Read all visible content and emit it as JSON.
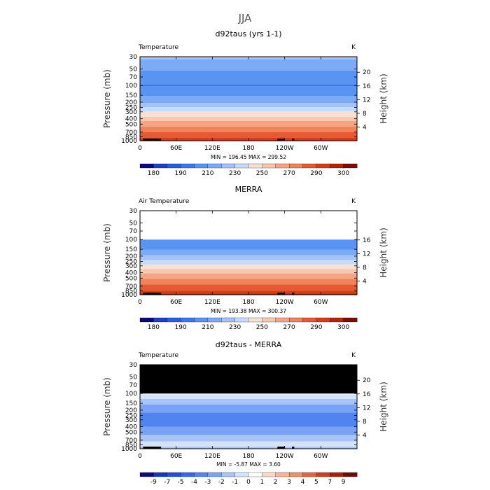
{
  "figure_title": "JJA",
  "colors": {
    "temp_ramp": [
      "#0a0a7a",
      "#1f3fc7",
      "#2a5ee0",
      "#3b78ee",
      "#5a94f2",
      "#7caaf5",
      "#a3c3f7",
      "#c7daf8",
      "#f6e2d4",
      "#f7c7b0",
      "#f5a585",
      "#f0825c",
      "#e65a33",
      "#d63c18",
      "#b62408",
      "#7a0d05"
    ],
    "diff_ramp": [
      "#0a0a7a",
      "#1537b8",
      "#2250d8",
      "#3767e8",
      "#5284f0",
      "#7aa2f4",
      "#a7c4f7",
      "#d4e2fa",
      "#ffffff",
      "#fbd9c6",
      "#f5b596",
      "#ef9068",
      "#e4663e",
      "#cf3f1b",
      "#a8200a",
      "#6d0c05"
    ],
    "mask": "#000000",
    "frame": "#000000"
  },
  "panels": [
    {
      "title": "d92taus (yrs 1-1)",
      "left_label": "Temperature",
      "right_label": "K",
      "ylabel": "Pressure (mb)",
      "ylabel_right": "Height (km)",
      "stats": "MIN = 196.45   MAX = 299.52"
    },
    {
      "title": "MERRA",
      "left_label": "Air Temperature",
      "right_label": "K",
      "ylabel": "Pressure (mb)",
      "ylabel_right": "Height (km)",
      "stats": "MIN = 193.38   MAX = 300.37"
    },
    {
      "title": "d92taus - MERRA",
      "left_label": "Temperature",
      "right_label": "K",
      "ylabel": "Pressure (mb)",
      "ylabel_right": "Height (km)",
      "stats": "MIN =  -5.87   MAX =    3.60"
    }
  ],
  "chart_data": [
    {
      "type": "heatmap",
      "title": "d92taus (yrs 1-1)",
      "variable": "Temperature",
      "units": "K",
      "xlabel": "",
      "ylabel": "Pressure (mb)",
      "ylabel_right": "Height (km)",
      "x_ticks": [
        "0",
        "60E",
        "120E",
        "180",
        "120W",
        "60W"
      ],
      "y_ticks": [
        "30",
        "50",
        "70",
        "100",
        "150",
        "200",
        "250",
        "300",
        "400",
        "500",
        "700",
        "850",
        "1000"
      ],
      "y_ticks_right": [
        "20",
        "16",
        "12",
        "8",
        "4"
      ],
      "y_scale": "log",
      "ylim": [
        1000,
        30
      ],
      "colorbar_labels": [
        "180",
        "190",
        "210",
        "230",
        "250",
        "270",
        "290",
        "300"
      ],
      "min": 196.45,
      "max": 299.52,
      "profile": [
        {
          "p": 1000,
          "v": 296
        },
        {
          "p": 850,
          "v": 288
        },
        {
          "p": 700,
          "v": 281
        },
        {
          "p": 500,
          "v": 266
        },
        {
          "p": 400,
          "v": 255
        },
        {
          "p": 300,
          "v": 241
        },
        {
          "p": 250,
          "v": 230
        },
        {
          "p": 200,
          "v": 219
        },
        {
          "p": 150,
          "v": 208
        },
        {
          "p": 100,
          "v": 199
        },
        {
          "p": 70,
          "v": 205
        },
        {
          "p": 50,
          "v": 212
        },
        {
          "p": 30,
          "v": 222
        }
      ]
    },
    {
      "type": "heatmap",
      "title": "MERRA",
      "variable": "Air Temperature",
      "units": "K",
      "xlabel": "",
      "ylabel": "Pressure (mb)",
      "ylabel_right": "Height (km)",
      "x_ticks": [
        "0",
        "60E",
        "120E",
        "180",
        "120W",
        "60W"
      ],
      "y_ticks": [
        "30",
        "50",
        "70",
        "100",
        "150",
        "200",
        "250",
        "300",
        "400",
        "500",
        "700",
        "850",
        "1000"
      ],
      "y_ticks_right": [
        "16",
        "12",
        "8",
        "4"
      ],
      "y_scale": "log",
      "ylim": [
        1000,
        30
      ],
      "colorbar_labels": [
        "180",
        "190",
        "210",
        "230",
        "250",
        "270",
        "290",
        "300"
      ],
      "min": 193.38,
      "max": 300.37,
      "profile": [
        {
          "p": 1000,
          "v": 297
        },
        {
          "p": 850,
          "v": 289
        },
        {
          "p": 700,
          "v": 282
        },
        {
          "p": 500,
          "v": 268
        },
        {
          "p": 400,
          "v": 258
        },
        {
          "p": 300,
          "v": 244
        },
        {
          "p": 250,
          "v": 234
        },
        {
          "p": 200,
          "v": 222
        },
        {
          "p": 150,
          "v": 210
        },
        {
          "p": 100,
          "v": 200
        }
      ]
    },
    {
      "type": "heatmap",
      "title": "d92taus - MERRA",
      "variable": "Temperature",
      "units": "K",
      "xlabel": "",
      "ylabel": "Pressure (mb)",
      "ylabel_right": "Height (km)",
      "x_ticks": [
        "0",
        "60E",
        "120E",
        "180",
        "120W",
        "60W"
      ],
      "y_ticks": [
        "30",
        "50",
        "70",
        "100",
        "150",
        "200",
        "250",
        "300",
        "400",
        "500",
        "700",
        "850",
        "1000"
      ],
      "y_ticks_right": [
        "20",
        "16",
        "12",
        "8",
        "4"
      ],
      "y_scale": "log",
      "ylim": [
        1000,
        30
      ],
      "colorbar_labels": [
        "-9",
        "-7",
        "-5",
        "-4",
        "-3",
        "-2",
        "-1",
        "0",
        "1",
        "2",
        "3",
        "4",
        "5",
        "7",
        "9"
      ],
      "min": -5.87,
      "max": 3.6,
      "profile": [
        {
          "p": 1000,
          "v": -1.5
        },
        {
          "p": 850,
          "v": -0.5
        },
        {
          "p": 700,
          "v": -1.2
        },
        {
          "p": 500,
          "v": -2.5
        },
        {
          "p": 400,
          "v": -3.0
        },
        {
          "p": 300,
          "v": -3.6
        },
        {
          "p": 250,
          "v": -3.3
        },
        {
          "p": 200,
          "v": -2.6
        },
        {
          "p": 150,
          "v": -1.8
        },
        {
          "p": 100,
          "v": 0.2
        }
      ],
      "masked_above_p": 100
    }
  ]
}
